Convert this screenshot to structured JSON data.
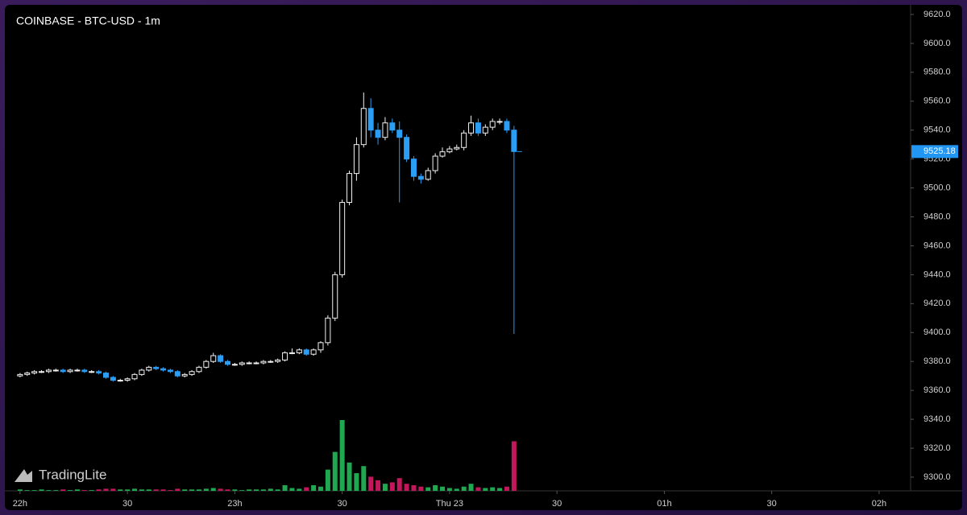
{
  "chart_data": {
    "type": "candlestick",
    "title": "COINBASE - BTC-USD - 1m",
    "watermark": "TradingLite",
    "up_color": "#f2f2f2",
    "down_color": "#2a9df4",
    "volume_up_color": "#1fa84f",
    "volume_down_color": "#c2185b",
    "last_price_color": "#2196f3",
    "xlim": [
      -3.8,
      248.8
    ],
    "xticks": [
      {
        "value": 0,
        "label": "22h"
      },
      {
        "value": 30,
        "label": "30"
      },
      {
        "value": 60,
        "label": "23h"
      },
      {
        "value": 90,
        "label": "30"
      },
      {
        "value": 120,
        "label": "Thu 23"
      },
      {
        "value": 150,
        "label": "30"
      },
      {
        "value": 180,
        "label": "01h"
      },
      {
        "value": 210,
        "label": "30"
      },
      {
        "value": 240,
        "label": "02h"
      }
    ],
    "ylim": [
      9290.5,
      9630
    ],
    "yticks": [
      {
        "value": 9300,
        "label": "9300.0"
      },
      {
        "value": 9320,
        "label": "9320.0"
      },
      {
        "value": 9340,
        "label": "9340.0"
      },
      {
        "value": 9360,
        "label": "9360.0"
      },
      {
        "value": 9380,
        "label": "9380.0"
      },
      {
        "value": 9400,
        "label": "9400.0"
      },
      {
        "value": 9420,
        "label": "9420.0"
      },
      {
        "value": 9440,
        "label": "9440.0"
      },
      {
        "value": 9460,
        "label": "9460.0"
      },
      {
        "value": 9480,
        "label": "9480.0"
      },
      {
        "value": 9500,
        "label": "9500.0"
      },
      {
        "value": 9520,
        "label": "9520.0"
      },
      {
        "value": 9540,
        "label": "9540.0"
      },
      {
        "value": 9560,
        "label": "9560.0"
      },
      {
        "value": 9580,
        "label": "9580.0"
      },
      {
        "value": 9600,
        "label": "9600.0"
      },
      {
        "value": 9620,
        "label": "9620.0"
      }
    ],
    "x": [
      0,
      2,
      4,
      6,
      8,
      10,
      12,
      14,
      16,
      18,
      20,
      22,
      24,
      26,
      28,
      30,
      32,
      34,
      36,
      38,
      40,
      42,
      44,
      46,
      48,
      50,
      52,
      54,
      56,
      58,
      60,
      62,
      64,
      66,
      68,
      70,
      72,
      74,
      76,
      78,
      80,
      82,
      84,
      86,
      88,
      90,
      92,
      94,
      96,
      98,
      100,
      102,
      104,
      106,
      108,
      110,
      112,
      114,
      116,
      118,
      120,
      122,
      124,
      126,
      128,
      130,
      132,
      134,
      136,
      138
    ],
    "open": [
      9370,
      9371,
      9372,
      9373,
      9373,
      9374,
      9374,
      9373,
      9374,
      9374,
      9373,
      9373,
      9372,
      9369,
      9367,
      9367,
      9368,
      9371,
      9374,
      9376,
      9375,
      9374,
      9373,
      9370,
      9371,
      9373,
      9376,
      9380,
      9384,
      9380,
      9378,
      9378,
      9379,
      9379,
      9379,
      9380,
      9380,
      9381,
      9386,
      9386,
      9388,
      9385,
      9388,
      9393,
      9410,
      9440,
      9490,
      9510,
      9530,
      9555,
      9540,
      9535,
      9545,
      9540,
      9535,
      9520,
      9508,
      9506,
      9512,
      9522,
      9525,
      9527,
      9528,
      9538,
      9545,
      9538,
      9542,
      9546,
      9546,
      9540
    ],
    "high": [
      9372,
      9373,
      9374,
      9374,
      9375,
      9375,
      9375,
      9375,
      9375,
      9375,
      9374,
      9374,
      9373,
      9370,
      9368,
      9369,
      9372,
      9375,
      9377,
      9377,
      9376,
      9375,
      9374,
      9372,
      9374,
      9377,
      9381,
      9386,
      9385,
      9381,
      9379,
      9380,
      9380,
      9380,
      9381,
      9381,
      9382,
      9387,
      9389,
      9389,
      9389,
      9389,
      9394,
      9412,
      9442,
      9492,
      9512,
      9535,
      9566,
      9562,
      9545,
      9549,
      9548,
      9546,
      9537,
      9522,
      9510,
      9514,
      9524,
      9528,
      9529,
      9530,
      9540,
      9550,
      9548,
      9544,
      9548,
      9548,
      9548,
      9543
    ],
    "low": [
      9369,
      9370,
      9371,
      9372,
      9372,
      9373,
      9372,
      9372,
      9373,
      9372,
      9372,
      9371,
      9368,
      9366,
      9366,
      9366,
      9367,
      9370,
      9373,
      9374,
      9373,
      9372,
      9369,
      9369,
      9370,
      9372,
      9375,
      9379,
      9379,
      9377,
      9377,
      9377,
      9378,
      9378,
      9378,
      9379,
      9379,
      9380,
      9385,
      9385,
      9384,
      9384,
      9386,
      9391,
      9408,
      9438,
      9488,
      9505,
      9528,
      9535,
      9530,
      9533,
      9538,
      9490,
      9518,
      9505,
      9503,
      9505,
      9510,
      9521,
      9524,
      9526,
      9526,
      9536,
      9536,
      9536,
      9540,
      9544,
      9538,
      9399
    ],
    "close": [
      9371,
      9372,
      9373,
      9373,
      9374,
      9374,
      9373,
      9374,
      9374,
      9373,
      9373,
      9372,
      9369,
      9367,
      9367,
      9368,
      9371,
      9374,
      9376,
      9375,
      9374,
      9373,
      9370,
      9371,
      9373,
      9376,
      9380,
      9384,
      9380,
      9378,
      9378,
      9379,
      9379,
      9379,
      9380,
      9380,
      9381,
      9386,
      9386,
      9388,
      9385,
      9388,
      9393,
      9410,
      9440,
      9490,
      9510,
      9530,
      9555,
      9540,
      9535,
      9545,
      9540,
      9535,
      9520,
      9508,
      9506,
      9512,
      9522,
      9525,
      9527,
      9528,
      9538,
      9545,
      9538,
      9542,
      9546,
      9546,
      9540,
      9525.18
    ],
    "volume": [
      2,
      1,
      1,
      2,
      1,
      1,
      2,
      1,
      2,
      1,
      1,
      2,
      3,
      3,
      2,
      2,
      3,
      2,
      2,
      2,
      2,
      1,
      3,
      2,
      2,
      2,
      3,
      4,
      3,
      2,
      2,
      1,
      2,
      2,
      2,
      3,
      2,
      8,
      4,
      3,
      5,
      8,
      6,
      30,
      55,
      100,
      40,
      25,
      35,
      20,
      15,
      10,
      12,
      18,
      10,
      8,
      6,
      5,
      8,
      6,
      4,
      3,
      6,
      10,
      5,
      4,
      5,
      4,
      6,
      70
    ]
  }
}
